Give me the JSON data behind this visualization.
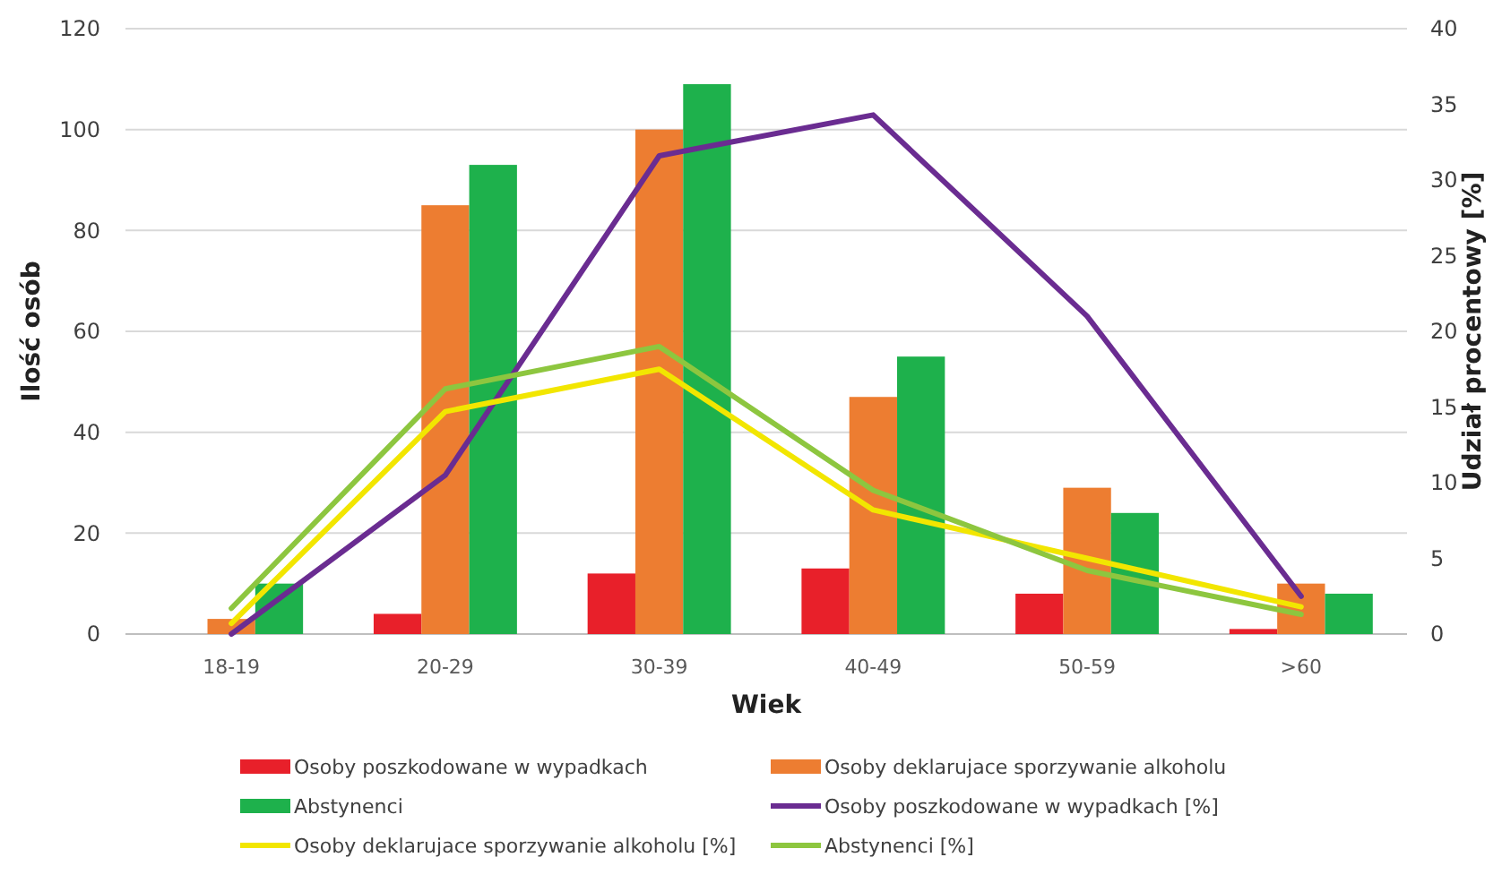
{
  "chart_data": {
    "type": "bar",
    "xlabel": "Wiek",
    "ylabel": "Ilość osób",
    "y2label": "Udział procentowy [%]",
    "categories": [
      "18-19",
      "20-29",
      "30-39",
      "40-49",
      "50-59",
      ">60"
    ],
    "series": [
      {
        "name": "Osoby poszkodowane w wypadkach",
        "color": "#e8202a",
        "values": [
          0,
          4,
          12,
          13,
          8,
          1
        ]
      },
      {
        "name": "Osoby deklarujace sporzywanie alkoholu",
        "color": "#ed7d31",
        "values": [
          3,
          85,
          100,
          47,
          29,
          10
        ]
      },
      {
        "name": "Abstynenci",
        "color": "#1eb14c",
        "values": [
          10,
          93,
          109,
          55,
          24,
          8
        ]
      },
      {
        "name": "Osoby poszkodowane w wypadkach [%]",
        "type": "line",
        "axis": "y2",
        "color": "#6a2c91",
        "values": [
          0,
          10.5,
          31.6,
          34.3,
          21,
          2.5
        ]
      },
      {
        "name": "Osoby deklarujace sporzywanie alkoholu [%]",
        "type": "line",
        "axis": "y2",
        "color": "#f2e600",
        "values": [
          0.7,
          14.7,
          17.5,
          8.2,
          5,
          1.8
        ]
      },
      {
        "name": "Abstynenci [%]",
        "type": "line",
        "axis": "y2",
        "color": "#8dc63f",
        "values": [
          1.7,
          16.2,
          19,
          9.5,
          4.2,
          1.3
        ]
      }
    ],
    "ylim": [
      0,
      120
    ],
    "yticks": [
      0,
      20,
      40,
      60,
      80,
      100,
      120
    ],
    "y2lim": [
      0,
      40
    ],
    "y2ticks": [
      0,
      5,
      10,
      15,
      20,
      25,
      30,
      35,
      40
    ],
    "grid": "y",
    "legend": "bottom",
    "marker": "none",
    "line_style": "solid"
  }
}
